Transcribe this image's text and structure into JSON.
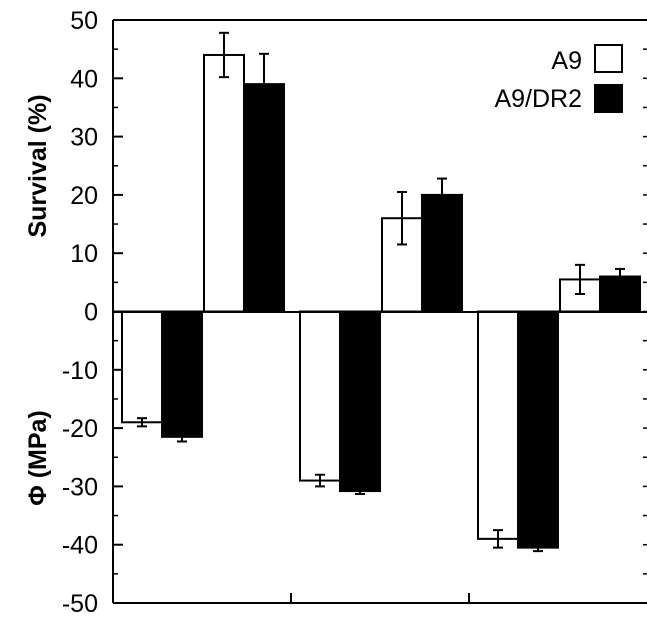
{
  "chart_data": {
    "type": "bar",
    "ylim": [
      -50,
      50
    ],
    "yticks": [
      -50,
      -40,
      -30,
      -20,
      -10,
      0,
      10,
      20,
      30,
      40,
      50
    ],
    "ylabel_top": "Survival (%)",
    "ylabel_bottom": "Φ (MPa)",
    "grid": false,
    "legend_position": "top-right",
    "series": [
      {
        "name": "A9",
        "fill": "#ffffff",
        "survival": [
          44,
          16,
          5.5
        ],
        "survival_err": [
          3.8,
          4.5,
          2.5
        ],
        "phi": [
          -19,
          -29,
          -39
        ],
        "phi_err": [
          0.7,
          1.0,
          1.5
        ]
      },
      {
        "name": "A9/DR2",
        "fill": "#000000",
        "survival": [
          39,
          20,
          6
        ],
        "survival_err": [
          5.2,
          2.8,
          1.3
        ],
        "phi": [
          -21.5,
          -30.8,
          -40.5
        ],
        "phi_err": [
          0.8,
          0.5,
          0.6
        ]
      }
    ]
  }
}
